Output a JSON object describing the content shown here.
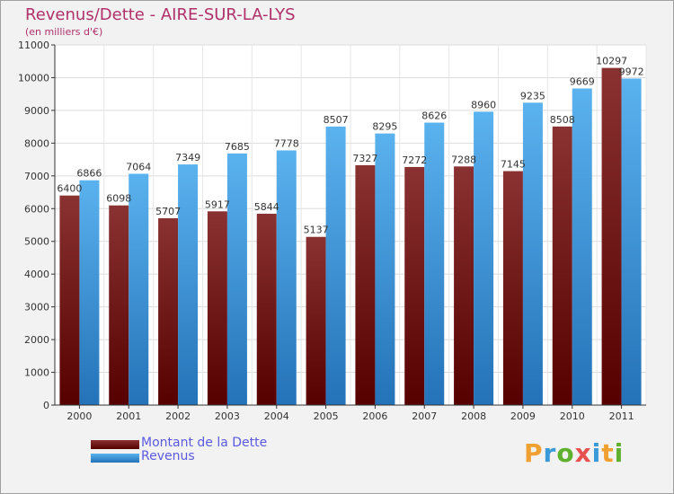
{
  "title": "Revenus/Dette - AIRE-SUR-LA-LYS",
  "subtitle": "(en milliers d'€)",
  "logo": {
    "text": "Proxiti",
    "letters": [
      "P",
      "r",
      "o",
      "x",
      "i",
      "t",
      "i"
    ],
    "colors": [
      "#f0a030",
      "#3a9ad8",
      "#60b030",
      "#e85050",
      "#3a9ad8",
      "#f0a030",
      "#60b030"
    ]
  },
  "colors": {
    "dette": "#7a1a1a",
    "revenus": "#3a8fd8",
    "title": "#b0306a",
    "legend_text": "#5a5ae0"
  },
  "chart_data": {
    "type": "bar",
    "title": "Revenus/Dette - AIRE-SUR-LA-LYS",
    "subtitle": "(en milliers d'€)",
    "xlabel": "",
    "ylabel": "",
    "ylim": [
      0,
      11000
    ],
    "yticks": [
      0,
      1000,
      2000,
      3000,
      4000,
      5000,
      6000,
      7000,
      8000,
      9000,
      10000,
      11000
    ],
    "ytick_labels": [
      "0",
      "1000",
      "2000",
      "3000",
      "4000",
      "5000",
      "6000",
      "7000",
      "8000",
      "9000",
      "10000",
      "11000"
    ],
    "grid": true,
    "legend_position": "bottom-left",
    "categories": [
      "2000",
      "2001",
      "2002",
      "2003",
      "2004",
      "2005",
      "2006",
      "2007",
      "2008",
      "2009",
      "2010",
      "2011"
    ],
    "series": [
      {
        "name": "Montant de la Dette",
        "key": "dette",
        "values": [
          6400,
          6098,
          5707,
          5917,
          5844,
          5137,
          7327,
          7272,
          7288,
          7145,
          8508,
          10297
        ]
      },
      {
        "name": "Revenus",
        "key": "revenus",
        "values": [
          6866,
          7064,
          7349,
          7685,
          7778,
          8507,
          8295,
          8626,
          8960,
          9235,
          9669,
          9972
        ]
      }
    ]
  }
}
